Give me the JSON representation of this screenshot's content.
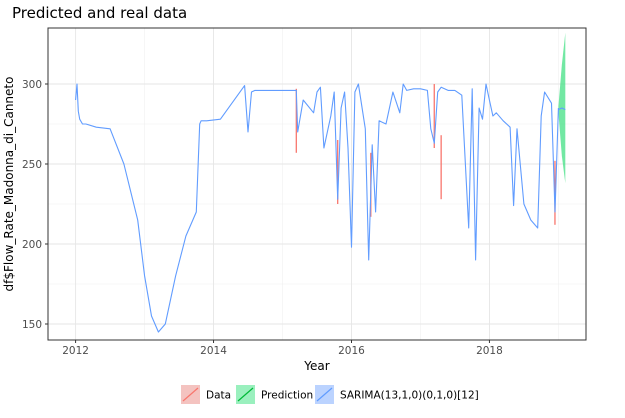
{
  "chart_data": {
    "type": "line",
    "title": "Predicted and real data",
    "xlabel": "Year",
    "ylabel": "df$Flow_Rate_Madonna_di_Canneto",
    "xlim": [
      2011.6,
      2019.4
    ],
    "ylim": [
      140,
      335
    ],
    "x_ticks": [
      2012,
      2014,
      2016,
      2018
    ],
    "x_tick_labels": [
      "2012",
      "2014",
      "2016",
      "2018"
    ],
    "y_ticks": [
      150,
      200,
      250,
      300
    ],
    "y_tick_labels": [
      "150",
      "200",
      "250",
      "300"
    ],
    "grid": true,
    "legend_position": "bottom",
    "series": [
      {
        "name": "SARIMA(13,1,0)(0,1,0)[12]",
        "color": "#619CFF",
        "x": [
          2012.0,
          2012.02,
          2012.04,
          2012.06,
          2012.1,
          2012.15,
          2012.3,
          2012.5,
          2012.7,
          2012.9,
          2013.0,
          2013.1,
          2013.2,
          2013.3,
          2013.45,
          2013.6,
          2013.75,
          2013.8,
          2013.82,
          2013.9,
          2014.1,
          2014.45,
          2014.5,
          2014.55,
          2014.6,
          2015.2,
          2015.22,
          2015.3,
          2015.45,
          2015.5,
          2015.55,
          2015.6,
          2015.7,
          2015.75,
          2015.8,
          2015.85,
          2015.9,
          2015.95,
          2016.0,
          2016.05,
          2016.1,
          2016.2,
          2016.25,
          2016.3,
          2016.35,
          2016.4,
          2016.5,
          2016.6,
          2016.7,
          2016.75,
          2016.8,
          2016.9,
          2017.0,
          2017.1,
          2017.15,
          2017.2,
          2017.25,
          2017.3,
          2017.4,
          2017.5,
          2017.6,
          2017.7,
          2017.75,
          2017.8,
          2017.85,
          2017.9,
          2017.95,
          2018.0,
          2018.05,
          2018.1,
          2018.2,
          2018.3,
          2018.35,
          2018.4,
          2018.5,
          2018.6,
          2018.7,
          2018.75,
          2018.8,
          2018.9,
          2018.95,
          2019.0
        ],
        "y": [
          290,
          300,
          283,
          278,
          275,
          275,
          273,
          272,
          250,
          215,
          180,
          155,
          145,
          150,
          180,
          205,
          220,
          275,
          277,
          277,
          278,
          299,
          270,
          295,
          296,
          296,
          270,
          290,
          282,
          295,
          298,
          260,
          280,
          295,
          228,
          285,
          295,
          260,
          198,
          295,
          300,
          272,
          190,
          262,
          220,
          277,
          275,
          295,
          282,
          300,
          296,
          297,
          297,
          296,
          272,
          263,
          295,
          298,
          296,
          296,
          293,
          210,
          297,
          190,
          285,
          278,
          300,
          290,
          280,
          282,
          277,
          273,
          224,
          272,
          225,
          215,
          210,
          280,
          295,
          288,
          220,
          285
        ],
        "show_in_legend": true
      },
      {
        "name": "Data",
        "color": "#F8766D",
        "spikes": [
          {
            "x": 2015.2,
            "y": 257
          },
          {
            "x": 2015.8,
            "y": 225
          },
          {
            "x": 2016.28,
            "y": 217
          },
          {
            "x": 2017.2,
            "y": 260
          },
          {
            "x": 2017.3,
            "y": 228
          },
          {
            "x": 2018.95,
            "y": 212
          }
        ],
        "show_in_legend": true
      },
      {
        "name": "Prediction",
        "color": "#00BA38",
        "fill": "#43E084",
        "x": [
          2019.0,
          2019.05,
          2019.1
        ],
        "y": [
          284,
          285,
          284
        ],
        "lower": [
          282,
          255,
          238
        ],
        "upper": [
          286,
          312,
          332
        ],
        "show_in_legend": true
      }
    ]
  }
}
